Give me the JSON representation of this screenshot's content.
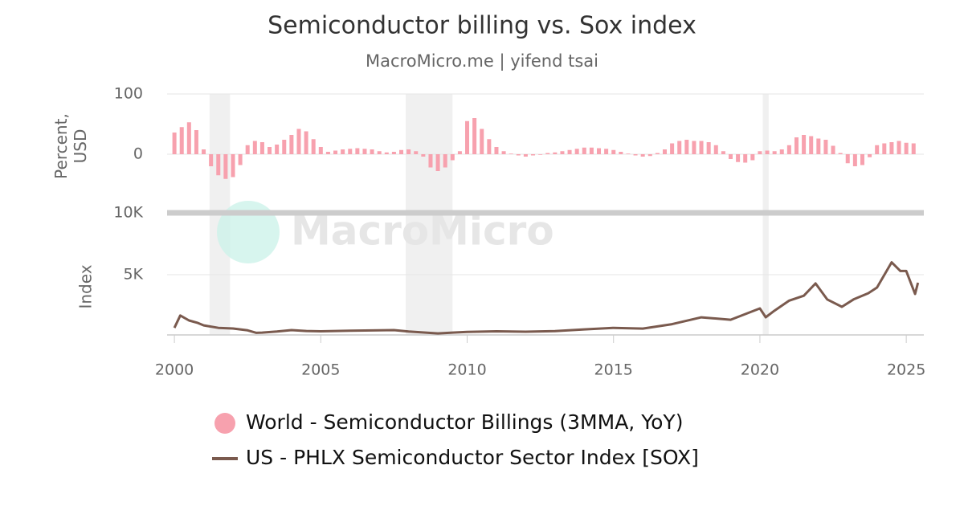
{
  "chart_data": [
    {
      "type": "bar",
      "title": "Semiconductor billing vs. Sox index",
      "subtitle": "MacroMicro.me | yifend tsai",
      "watermark": "MacroMicro",
      "ylabel": "Percent, USD",
      "xlim": [
        1999.75,
        2025.6
      ],
      "ylim": [
        -100,
        100
      ],
      "yticks": [
        0,
        100
      ],
      "grid": true,
      "shaded": [
        [
          2001.2,
          2001.9
        ],
        [
          2007.9,
          2009.5
        ],
        [
          2020.1,
          2020.3
        ]
      ],
      "x": [
        2000,
        2000.25,
        2000.5,
        2000.75,
        2001,
        2001.25,
        2001.5,
        2001.75,
        2002,
        2002.25,
        2002.5,
        2002.75,
        2003,
        2003.25,
        2003.5,
        2003.75,
        2004,
        2004.25,
        2004.5,
        2004.75,
        2005,
        2005.25,
        2005.5,
        2005.75,
        2006,
        2006.25,
        2006.5,
        2006.75,
        2007,
        2007.25,
        2007.5,
        2007.75,
        2008,
        2008.25,
        2008.5,
        2008.75,
        2009,
        2009.25,
        2009.5,
        2009.75,
        2010,
        2010.25,
        2010.5,
        2010.75,
        2011,
        2011.25,
        2011.5,
        2011.75,
        2012,
        2012.25,
        2012.5,
        2012.75,
        2013,
        2013.25,
        2013.5,
        2013.75,
        2014,
        2014.25,
        2014.5,
        2014.75,
        2015,
        2015.25,
        2015.5,
        2015.75,
        2016,
        2016.25,
        2016.5,
        2016.75,
        2017,
        2017.25,
        2017.5,
        2017.75,
        2018,
        2018.25,
        2018.5,
        2018.75,
        2019,
        2019.25,
        2019.5,
        2019.75,
        2020,
        2020.25,
        2020.5,
        2020.75,
        2021,
        2021.25,
        2021.5,
        2021.75,
        2022,
        2022.25,
        2022.5,
        2022.75,
        2023,
        2023.25,
        2023.5,
        2023.75,
        2024,
        2024.25,
        2024.5,
        2024.75,
        2025,
        2025.25
      ],
      "series": [
        {
          "name": "World - Semiconductor Billings (3MMA, YoY)",
          "color": "#f7a1ae",
          "values": [
            36,
            45,
            53,
            40,
            8,
            -20,
            -35,
            -41,
            -38,
            -18,
            15,
            22,
            20,
            12,
            16,
            24,
            32,
            42,
            38,
            25,
            12,
            4,
            6,
            8,
            9,
            10,
            9,
            8,
            5,
            3,
            4,
            7,
            8,
            5,
            -4,
            -22,
            -28,
            -22,
            -10,
            5,
            55,
            60,
            42,
            25,
            12,
            5,
            1,
            -2,
            -4,
            -2,
            -1,
            2,
            3,
            5,
            7,
            9,
            11,
            11,
            10,
            9,
            7,
            4,
            1,
            -2,
            -4,
            -3,
            2,
            8,
            18,
            22,
            24,
            22,
            22,
            20,
            15,
            5,
            -8,
            -13,
            -14,
            -10,
            5,
            6,
            5,
            8,
            15,
            28,
            32,
            30,
            26,
            24,
            14,
            2,
            -15,
            -20,
            -18,
            -5,
            15,
            18,
            20,
            22,
            19,
            18
          ]
        }
      ]
    },
    {
      "type": "line",
      "ylabel": "Index",
      "xlim": [
        1999.75,
        2025.6
      ],
      "xticks": [
        2000,
        2005,
        2010,
        2015,
        2020,
        2025
      ],
      "ylim": [
        0,
        10000
      ],
      "yticks": [
        {
          "value": 5000,
          "label": "5K"
        },
        {
          "value": 10000,
          "label": "10K"
        }
      ],
      "grid": true,
      "x": [
        2000,
        2000.2,
        2000.5,
        2000.8,
        2001,
        2001.5,
        2002,
        2002.5,
        2002.8,
        2003,
        2003.5,
        2004,
        2004.5,
        2005,
        2006,
        2007,
        2007.5,
        2008,
        2009,
        2009.5,
        2010,
        2011,
        2012,
        2013,
        2014,
        2015,
        2016,
        2017,
        2018,
        2019,
        2020,
        2020.2,
        2020.5,
        2021,
        2021.5,
        2021.9,
        2022.3,
        2022.8,
        2023.2,
        2023.7,
        2024,
        2024.5,
        2024.8,
        2025,
        2025.3,
        2025.4
      ],
      "series": [
        {
          "name": "US - PHLX Semiconductor Sector Index [SOX]",
          "color": "#7a5a4e",
          "values": [
            700,
            1700,
            1300,
            1100,
            900,
            700,
            650,
            500,
            300,
            320,
            400,
            520,
            450,
            420,
            470,
            500,
            520,
            400,
            250,
            320,
            370,
            420,
            390,
            440,
            580,
            700,
            640,
            1000,
            1550,
            1360,
            2270,
            1560,
            2100,
            2900,
            3300,
            4290,
            3000,
            2400,
            3000,
            3500,
            3960,
            6000,
            5300,
            5300,
            3440,
            4350
          ]
        }
      ]
    }
  ]
}
